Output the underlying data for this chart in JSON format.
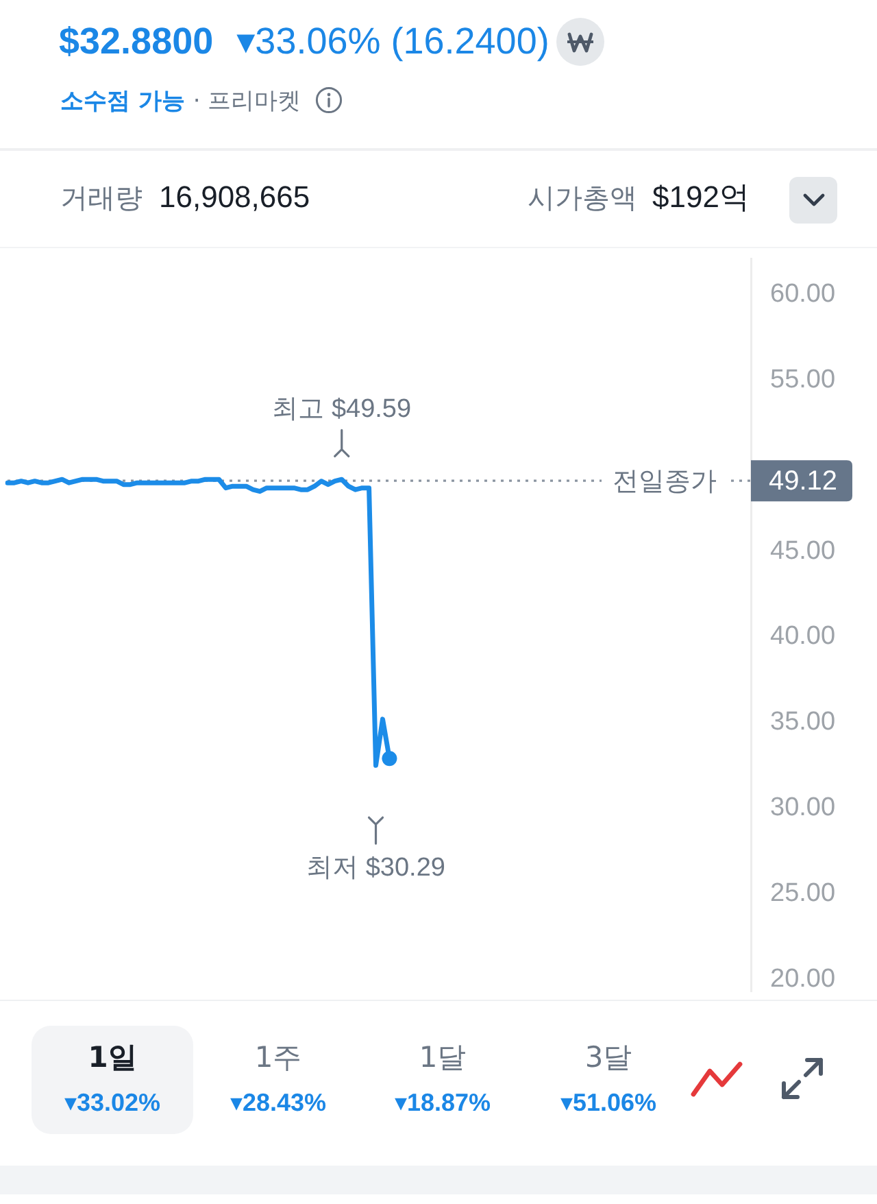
{
  "chart_data": {
    "type": "line",
    "title": "$32.8800",
    "subtitle": "▾33.06% (16.2400)",
    "categories": [
      null,
      null,
      null,
      null,
      null,
      null,
      null,
      null,
      null,
      null,
      null,
      null,
      null,
      null,
      null,
      null,
      null,
      null,
      null,
      null,
      null,
      null,
      null,
      null,
      null,
      null,
      null,
      null,
      null,
      null,
      null,
      null,
      null,
      null,
      null,
      null,
      null,
      null,
      null,
      null,
      null,
      null,
      null,
      null,
      null,
      null,
      null,
      null,
      null,
      null,
      null,
      null,
      null,
      null,
      null,
      null,
      null,
      null,
      null,
      null,
      null,
      null,
      null,
      null,
      null,
      null,
      null,
      null,
      null,
      null,
      null,
      null,
      null,
      null,
      null,
      null,
      null,
      null,
      null,
      null,
      null,
      null,
      null,
      null,
      null,
      null,
      null,
      null,
      null,
      null,
      null,
      null,
      null,
      null,
      null,
      null,
      null,
      null,
      null,
      null,
      null,
      null,
      null,
      null,
      null,
      null,
      null,
      null,
      null,
      null
    ],
    "series": [
      {
        "color": "#1c8ce8",
        "values": [
          49.0,
          49.0,
          49.1,
          49.0,
          49.1,
          49.0,
          49.0,
          49.1,
          49.2,
          49.0,
          49.1,
          49.2,
          49.2,
          49.2,
          49.1,
          49.1,
          49.1,
          48.9,
          48.9,
          49.0,
          49.0,
          49.0,
          49.0,
          49.0,
          49.0,
          49.0,
          49.0,
          49.1,
          49.1,
          49.2,
          49.2,
          49.2,
          48.7,
          48.8,
          48.8,
          48.8,
          48.6,
          48.5,
          48.7,
          48.7,
          48.7,
          48.7,
          48.7,
          48.6,
          48.6,
          48.8,
          49.1,
          48.9,
          49.1,
          49.2,
          48.8,
          48.6,
          48.7,
          48.7,
          32.5,
          35.2,
          32.9,
          null,
          null,
          null,
          null,
          null,
          null,
          null,
          null,
          null,
          null,
          null,
          null,
          null,
          null,
          null,
          null,
          null,
          null,
          null,
          null,
          null,
          null,
          null,
          null,
          null,
          null,
          null,
          null,
          null,
          null,
          null,
          null,
          null,
          null,
          null,
          null,
          null,
          null,
          null,
          null,
          null,
          null,
          null,
          null,
          null,
          null,
          null,
          null,
          null,
          null,
          null,
          null,
          null
        ]
      },
      {
        "type": "scatter",
        "color": "#1c8ce8",
        "values": [
          null,
          null,
          null,
          null,
          null,
          null,
          null,
          null,
          null,
          null,
          null,
          null,
          null,
          null,
          null,
          null,
          null,
          null,
          null,
          null,
          null,
          null,
          null,
          null,
          null,
          null,
          null,
          null,
          null,
          null,
          null,
          null,
          null,
          null,
          null,
          null,
          null,
          null,
          null,
          null,
          null,
          null,
          null,
          null,
          null,
          null,
          null,
          null,
          null,
          null,
          null,
          null,
          null,
          null,
          null,
          null,
          32.9,
          null,
          null,
          null,
          null,
          null,
          null,
          null,
          null,
          null,
          null,
          null,
          null,
          null,
          null,
          null,
          null,
          null,
          null,
          null,
          null,
          null,
          null,
          null,
          null,
          null,
          null,
          null,
          null,
          null,
          null,
          null,
          null,
          null,
          null,
          null,
          null,
          null,
          null,
          null,
          null,
          null,
          null,
          null,
          null,
          null,
          null,
          null,
          null,
          null,
          null,
          null,
          null,
          null
        ]
      }
    ],
    "ylim": [
      19.3,
      62.1
    ],
    "yticks": [
      {
        "value": 20,
        "label": "20.00"
      },
      {
        "value": 25,
        "label": "25.00"
      },
      {
        "value": 30,
        "label": "30.00"
      },
      {
        "value": 35,
        "label": "35.00"
      },
      {
        "value": 40,
        "label": "40.00"
      },
      {
        "value": 45,
        "label": "45.00"
      },
      {
        "value": 55,
        "label": "55.00"
      },
      {
        "value": 60,
        "label": "60.00"
      }
    ],
    "tick_labels": "y",
    "ref_lines": [
      {
        "axis": "y",
        "value": 49.12,
        "label": "전일종가",
        "color": "#8b95a1",
        "line_style": "dotted"
      }
    ],
    "annotations": [
      {
        "text": "최고 $49.59",
        "y": 49.59
      },
      "49.12",
      "최저 $30.29",
      "소수점 가능",
      "· 프리마켓",
      "거래량",
      "16,908,665",
      "시가총액",
      "$192억",
      "1일",
      "▾33.02%",
      "1주",
      "▾28.43%",
      "1달",
      "▾18.87%",
      "3달",
      "▾51.06%"
    ]
  }
}
